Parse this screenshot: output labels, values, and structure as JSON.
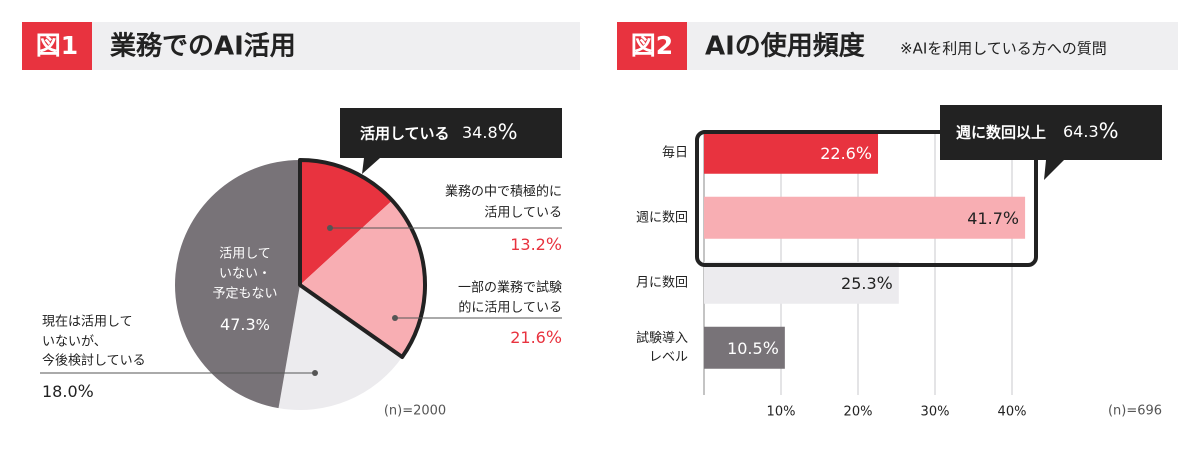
{
  "chart_data": [
    {
      "type": "pie",
      "figure_label": "図1",
      "title": "業務でのAI活用",
      "annotation": {
        "label": "活用している",
        "value": 34.8,
        "value_label": "34.8%"
      },
      "categories": [
        [
          "業務の中で積極的に",
          "活用している"
        ],
        [
          "一部の業務で試験",
          "的に活用している"
        ],
        [
          "現在は活用して",
          "いないが、",
          "今後検討している"
        ],
        [
          "活用して",
          "いない・",
          "予定もない"
        ]
      ],
      "values": [
        13.2,
        21.6,
        18.0,
        47.3
      ],
      "value_labels": [
        "13.2%",
        "21.6%",
        "18.0%",
        "47.3%"
      ],
      "colors": [
        "#e8333f",
        "#f8aeb3",
        "#ecebee",
        "#787378"
      ],
      "note": "(n)=2000"
    },
    {
      "type": "bar",
      "figure_label": "図2",
      "title": "AIの使用頻度",
      "subtitle": "※AIを利用している方への質問",
      "annotation": {
        "label": "週に数回以上",
        "value": 64.3,
        "value_label": "64.3%"
      },
      "categories": [
        [
          "毎日"
        ],
        [
          "週に数回"
        ],
        [
          "月に数回"
        ],
        [
          "試験導入",
          "レベル"
        ]
      ],
      "values": [
        22.6,
        41.7,
        25.3,
        10.5
      ],
      "value_labels": [
        "22.6%",
        "41.7%",
        "25.3%",
        "10.5%"
      ],
      "colors": [
        "#e8333f",
        "#f8aeb3",
        "#ecebee",
        "#787378"
      ],
      "xlim": [
        0,
        45
      ],
      "xticks": [
        {
          "value": 10,
          "label": "10%"
        },
        {
          "value": 20,
          "label": "20%"
        },
        {
          "value": 30,
          "label": "30%"
        },
        {
          "value": 40,
          "label": "40%"
        }
      ],
      "grid": true,
      "note": "(n)=696"
    }
  ]
}
